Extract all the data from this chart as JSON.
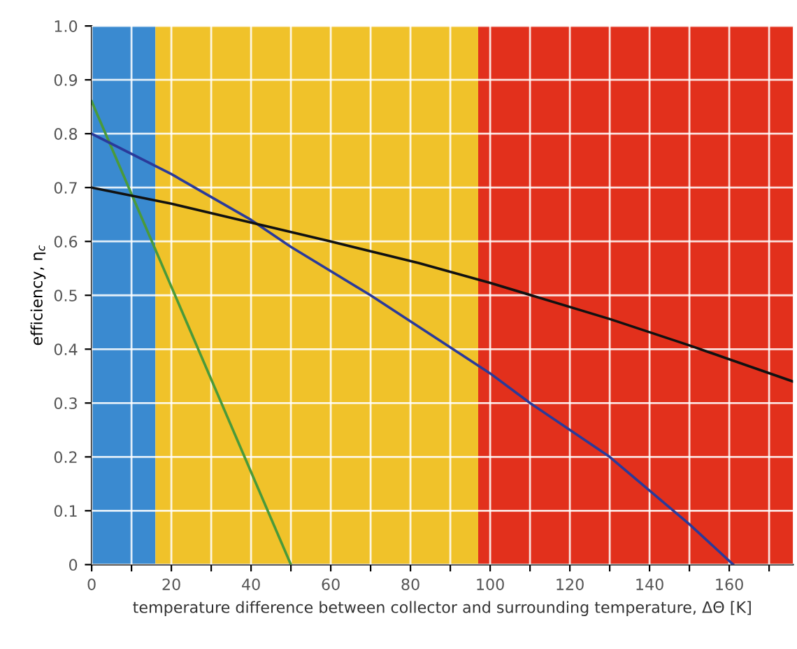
{
  "chart_data": {
    "type": "line",
    "xlabel": "temperature difference between collector and surrounding temperature, ΔΘ [K]",
    "ylabel": "efficiency, η$_{c}$",
    "xlim": [
      0,
      176
    ],
    "ylim": [
      0,
      1.0
    ],
    "xticks": [
      0,
      {
        "value": 10,
        "label": null
      },
      20,
      {
        "value": 30,
        "label": null
      },
      40,
      {
        "value": 50,
        "label": null
      },
      60,
      {
        "value": 70,
        "label": null
      },
      80,
      {
        "value": 90,
        "label": null
      },
      100,
      {
        "value": 110,
        "label": null
      },
      120,
      {
        "value": 130,
        "label": null
      },
      140,
      {
        "value": 150,
        "label": null
      },
      160,
      {
        "value": 170,
        "label": null
      }
    ],
    "yticks": [
      0,
      0.1,
      0.2,
      0.3,
      0.4,
      0.5,
      0.6,
      0.7,
      0.8,
      0.9,
      {
        "value": 1,
        "label": "1.0"
      }
    ],
    "grid": true,
    "bands": [
      {
        "axis": "x",
        "from": 0,
        "to": 16,
        "color": "#3a8ad0"
      },
      {
        "axis": "x",
        "from": 16,
        "to": 97,
        "color": "#f0c22a"
      },
      {
        "axis": "x",
        "from": 97,
        "to": 176,
        "color": "#e2301c"
      }
    ],
    "series": [
      {
        "color": "#4a9a3a",
        "x": [
          0,
          50
        ],
        "values": [
          0.86,
          0
        ]
      },
      {
        "color": "#2a3a9a",
        "x": [
          0,
          20,
          40,
          50,
          70,
          100,
          110,
          130,
          150,
          161
        ],
        "values": [
          0.8,
          0.725,
          0.64,
          0.59,
          0.5,
          0.355,
          0.3,
          0.2,
          0.075,
          0
        ]
      },
      {
        "color": "#111111",
        "x": [
          0,
          20,
          40,
          60,
          82,
          100,
          130,
          150,
          176
        ],
        "values": [
          0.7,
          0.67,
          0.635,
          0.6,
          0.56,
          0.523,
          0.456,
          0.407,
          0.34
        ]
      }
    ]
  }
}
